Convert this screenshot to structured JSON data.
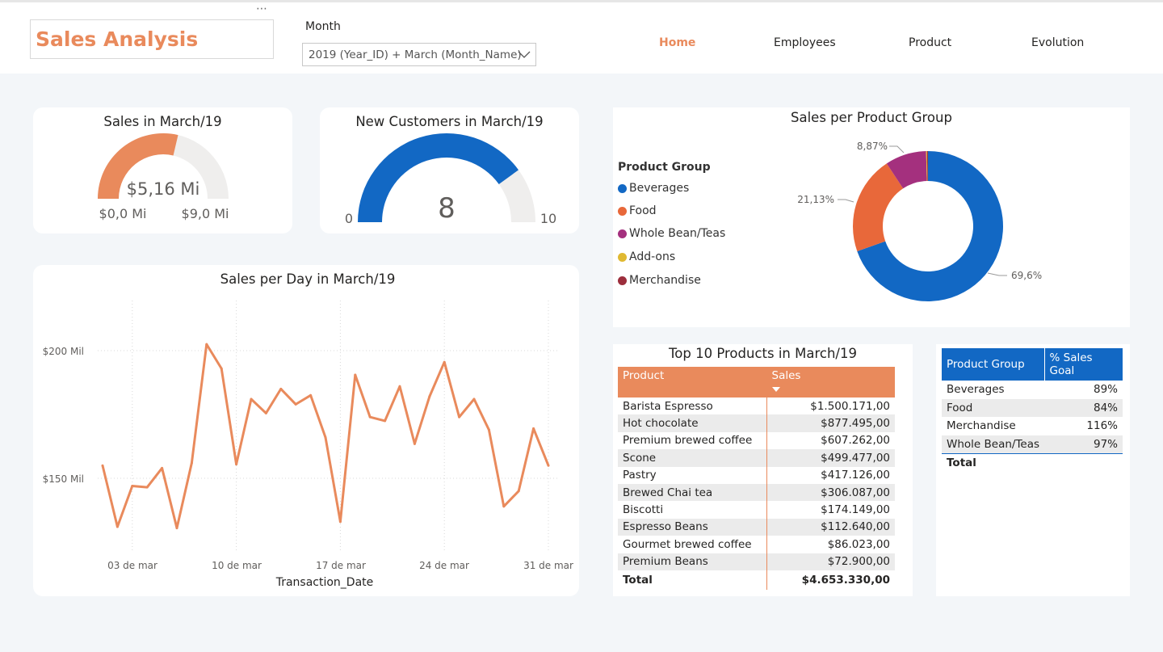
{
  "header": {
    "more_label": "⋯",
    "title": "Sales Analysis",
    "slicer_label": "Month",
    "slicer_value": "2019 (Year_ID) + March (Month_Name)",
    "nav": [
      "Home",
      "Employees",
      "Product",
      "Evolution"
    ],
    "active_nav": "Home"
  },
  "colors": {
    "accent": "#e98a5c",
    "blue": "#1268c4",
    "purple": "#a4307e",
    "orange": "#e8683a",
    "yellow": "#e0b932",
    "maroon": "#9c2e3c"
  },
  "sales_gauge": {
    "title": "Sales in March/19",
    "value_label": "$5,16 Mi",
    "min_label": "$0,0 Mi",
    "max_label": "$9,0 Mi",
    "value": 5.16,
    "min": 0,
    "max": 9
  },
  "customers_gauge": {
    "title": "New Customers in March/19",
    "value_label": "8",
    "min_label": "0",
    "max_label": "10",
    "value": 8,
    "min": 0,
    "max": 10
  },
  "donut": {
    "title": "Sales per Product Group",
    "legend_title": "Product Group",
    "legend": [
      "Beverages",
      "Food",
      "Whole Bean/Teas",
      "Add-ons",
      "Merchandise"
    ],
    "labels": [
      "69,6%",
      "21,13%",
      "8,87%"
    ]
  },
  "line": {
    "title": "Sales per Day in March/19",
    "xlabel": "Transaction_Date",
    "y_ticks": [
      "$200 Mil",
      "$150 Mil"
    ],
    "x_ticks": [
      "03 de mar",
      "10 de mar",
      "17 de mar",
      "24 de mar",
      "31 de mar"
    ]
  },
  "top10": {
    "title": "Top 10 Products in March/19",
    "col_product": "Product",
    "col_sales": "Sales",
    "rows": [
      {
        "product": "Barista Espresso",
        "sales": "$1.500.171,00"
      },
      {
        "product": "Hot chocolate",
        "sales": "$877.495,00"
      },
      {
        "product": "Premium brewed coffee",
        "sales": "$607.262,00"
      },
      {
        "product": "Scone",
        "sales": "$499.477,00"
      },
      {
        "product": "Pastry",
        "sales": "$417.126,00"
      },
      {
        "product": "Brewed Chai tea",
        "sales": "$306.087,00"
      },
      {
        "product": "Biscotti",
        "sales": "$174.149,00"
      },
      {
        "product": "Espresso Beans",
        "sales": "$112.640,00"
      },
      {
        "product": "Gourmet brewed coffee",
        "sales": "$86.023,00"
      },
      {
        "product": "Premium Beans",
        "sales": "$72.900,00"
      }
    ],
    "total_label": "Total",
    "total_value": "$4.653.330,00"
  },
  "goal_table": {
    "col_group": "Product Group",
    "col_goal": "% Sales Goal",
    "rows": [
      {
        "group": "Beverages",
        "goal": "89%"
      },
      {
        "group": "Food",
        "goal": "84%"
      },
      {
        "group": "Merchandise",
        "goal": "116%"
      },
      {
        "group": "Whole Bean/Teas",
        "goal": "97%"
      }
    ],
    "total_label": "Total"
  },
  "chart_data": [
    {
      "type": "pie",
      "title": "Sales per Product Group",
      "categories": [
        "Beverages",
        "Food",
        "Whole Bean/Teas",
        "Add-ons",
        "Merchandise"
      ],
      "values": [
        69.6,
        21.13,
        8.87,
        0.2,
        0.2
      ],
      "legend": "left"
    },
    {
      "type": "line",
      "title": "Sales per Day in March/19",
      "xlabel": "Transaction_Date",
      "ylabel": "",
      "x": [
        "2019-03-01",
        "2019-03-02",
        "2019-03-03",
        "2019-03-04",
        "2019-03-05",
        "2019-03-06",
        "2019-03-07",
        "2019-03-08",
        "2019-03-09",
        "2019-03-10",
        "2019-03-11",
        "2019-03-12",
        "2019-03-13",
        "2019-03-14",
        "2019-03-15",
        "2019-03-16",
        "2019-03-17",
        "2019-03-18",
        "2019-03-19",
        "2019-03-20",
        "2019-03-21",
        "2019-03-22",
        "2019-03-23",
        "2019-03-24",
        "2019-03-25",
        "2019-03-26",
        "2019-03-27",
        "2019-03-28",
        "2019-03-29",
        "2019-03-30",
        "2019-03-31"
      ],
      "series": [
        {
          "values": [
            155000,
            131000,
            147000,
            146500,
            154000,
            130500,
            156000,
            202500,
            193000,
            155500,
            181000,
            175500,
            185000,
            179000,
            182500,
            166000,
            133000,
            190500,
            174000,
            172500,
            186000,
            163500,
            182000,
            195500,
            174000,
            181000,
            169000,
            139000,
            145000,
            169500,
            155000
          ]
        }
      ],
      "ylim": [
        125000,
        210000
      ],
      "grid": true
    }
  ]
}
